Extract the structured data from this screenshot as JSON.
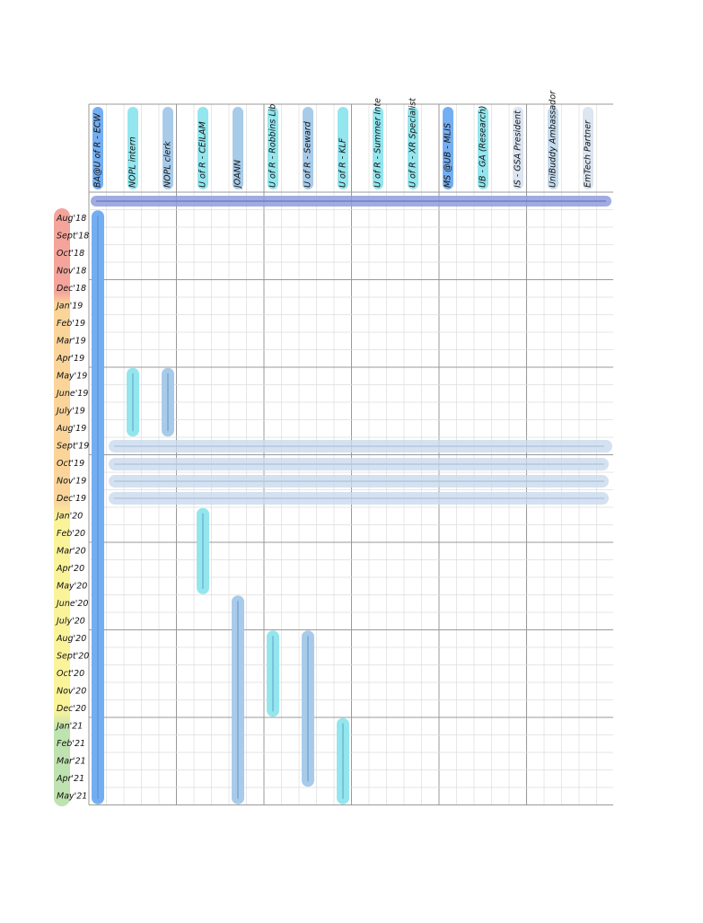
{
  "chart_data": {
    "type": "timeline",
    "categories": [
      "Aug'18",
      "Sept'18",
      "Oct'18",
      "Nov'18",
      "Dec'18",
      "Jan'19",
      "Feb'19",
      "Mar'19",
      "Apr'19",
      "May'19",
      "June'19",
      "July'19",
      "Aug'19",
      "Sept'19",
      "Oct'19",
      "Nov'19",
      "Dec'19",
      "Jan'20",
      "Feb'20",
      "Mar'20",
      "Apr'20",
      "May'20",
      "June'20",
      "July'20",
      "Aug'20",
      "Sept'20",
      "Oct'20",
      "Nov'20",
      "Dec'20",
      "Jan'21",
      "Feb'21",
      "Mar'21",
      "Apr'21",
      "May'21"
    ],
    "series": [
      {
        "name": "BA@U of R - ECW",
        "color": "#74aef2",
        "start": "Aug'18",
        "end": "May'21"
      },
      {
        "name": "NOPL intern",
        "color": "#93e6ee",
        "start": "May'19",
        "end": "Aug'19"
      },
      {
        "name": "NOPL clerk",
        "color": "#a8cbea",
        "start": "May'19",
        "end": "Aug'19"
      },
      {
        "name": "U of R - CEILAM",
        "color": "#93e6ee",
        "start": "Jan'20",
        "end": "May'20"
      },
      {
        "name": "JOANN",
        "color": "#a8cbea",
        "start": "June'20",
        "end": "May'21"
      },
      {
        "name": "U of R - Robbins Lib",
        "color": "#93e6ee",
        "start": "Aug'20",
        "end": "Dec'20"
      },
      {
        "name": "U of R - Seward",
        "color": "#a8cbea",
        "start": "Aug'20",
        "end": "Apr'21"
      },
      {
        "name": "U of R - KLF",
        "color": "#93e6ee",
        "start": "Jan'21",
        "end": "May'21"
      },
      {
        "name": "U of R - Summer Inte",
        "color": "#93e6ee"
      },
      {
        "name": "U of R - XR Specialist",
        "color": "#93e6ee"
      },
      {
        "name": "MS @UB - MLIS",
        "color": "#74aef2"
      },
      {
        "name": "UB - GA (Research)",
        "color": "#93e6ee"
      },
      {
        "name": "IS - GSA President",
        "color": "#dce6f1"
      },
      {
        "name": "UniBuddy Ambassador",
        "color": "#c6dcef"
      },
      {
        "name": "EmTech Partner",
        "color": "#dce6f1"
      }
    ]
  }
}
